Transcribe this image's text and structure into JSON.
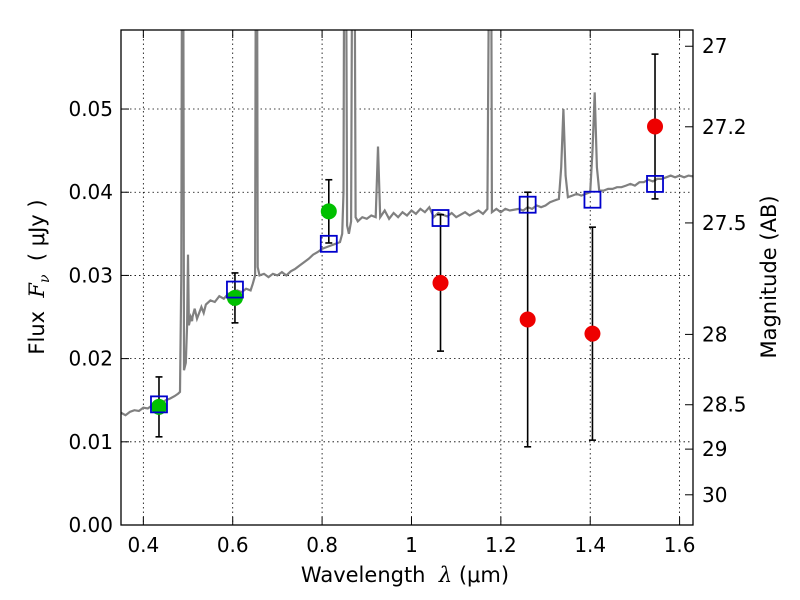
{
  "chart_data": {
    "type": "scatter",
    "xlabel_prefix": "Wavelength  ",
    "xlabel_symbol": "λ",
    "xlabel_unit": " (μm)",
    "ylabel_prefix": "Flux  ",
    "ylabel_symbol": "F",
    "ylabel_sub": "ν",
    "ylabel_unit": "  ( μJy )",
    "y2label": "Magnitude (AB)",
    "xlim": [
      0.35,
      1.63
    ],
    "ylim": [
      0.0,
      0.0595
    ],
    "grid": true,
    "x_ticks": [
      0.4,
      0.6,
      0.8,
      1.0,
      1.2,
      1.4,
      1.6
    ],
    "x_tick_labels": [
      "0.4",
      "0.6",
      "0.8",
      "1",
      "1.2",
      "1.4",
      "1.6"
    ],
    "y_ticks": [
      0.0,
      0.01,
      0.02,
      0.03,
      0.04,
      0.05
    ],
    "y_tick_labels": [
      "0.00",
      "0.01",
      "0.02",
      "0.03",
      "0.04",
      "0.05"
    ],
    "y2_ticks": [
      {
        "mag": 27.0,
        "label": "27"
      },
      {
        "mag": 27.2,
        "label": "27.2"
      },
      {
        "mag": 27.5,
        "label": "27.5"
      },
      {
        "mag": 28.0,
        "label": "28"
      },
      {
        "mag": 28.5,
        "label": "28.5"
      },
      {
        "mag": 29.0,
        "label": "29"
      },
      {
        "mag": 30.0,
        "label": "30"
      }
    ],
    "colors": {
      "spectrum": "#808080",
      "detection": "#00c000",
      "upper": "#ee0000",
      "model": "#0000cc",
      "errorbar": "#000000"
    },
    "series": [
      {
        "kind": "line",
        "points": [
          [
            0.35,
            0.0135
          ],
          [
            0.36,
            0.0132
          ],
          [
            0.37,
            0.0136
          ],
          [
            0.38,
            0.0138
          ],
          [
            0.39,
            0.0137
          ],
          [
            0.4,
            0.0141
          ],
          [
            0.41,
            0.014
          ],
          [
            0.42,
            0.0144
          ],
          [
            0.43,
            0.0143
          ],
          [
            0.44,
            0.0146
          ],
          [
            0.45,
            0.015
          ],
          [
            0.46,
            0.0152
          ],
          [
            0.47,
            0.0155
          ],
          [
            0.478,
            0.0158
          ],
          [
            0.482,
            0.016
          ],
          [
            0.485,
            0.03
          ],
          [
            0.487,
            0.08
          ],
          [
            0.489,
            0.08
          ],
          [
            0.491,
            0.0186
          ],
          [
            0.495,
            0.0195
          ],
          [
            0.498,
            0.024
          ],
          [
            0.5,
            0.0325
          ],
          [
            0.502,
            0.024
          ],
          [
            0.506,
            0.025
          ],
          [
            0.509,
            0.0245
          ],
          [
            0.51,
            0.025
          ],
          [
            0.515,
            0.026
          ],
          [
            0.52,
            0.0248
          ],
          [
            0.53,
            0.0262
          ],
          [
            0.535,
            0.0255
          ],
          [
            0.54,
            0.0265
          ],
          [
            0.55,
            0.027
          ],
          [
            0.56,
            0.0268
          ],
          [
            0.57,
            0.0275
          ],
          [
            0.58,
            0.0272
          ],
          [
            0.59,
            0.0278
          ],
          [
            0.6,
            0.0276
          ],
          [
            0.61,
            0.0282
          ],
          [
            0.62,
            0.028
          ],
          [
            0.63,
            0.0284
          ],
          [
            0.64,
            0.0282
          ],
          [
            0.645,
            0.029
          ],
          [
            0.65,
            0.03
          ],
          [
            0.652,
            0.08
          ],
          [
            0.654,
            0.08
          ],
          [
            0.656,
            0.031
          ],
          [
            0.66,
            0.03
          ],
          [
            0.67,
            0.0302
          ],
          [
            0.68,
            0.0298
          ],
          [
            0.69,
            0.0302
          ],
          [
            0.7,
            0.03
          ],
          [
            0.71,
            0.0304
          ],
          [
            0.72,
            0.03
          ],
          [
            0.73,
            0.0305
          ],
          [
            0.74,
            0.0308
          ],
          [
            0.75,
            0.0312
          ],
          [
            0.76,
            0.0316
          ],
          [
            0.77,
            0.032
          ],
          [
            0.78,
            0.0325
          ],
          [
            0.79,
            0.0328
          ],
          [
            0.8,
            0.0332
          ],
          [
            0.81,
            0.0334
          ],
          [
            0.82,
            0.0336
          ],
          [
            0.83,
            0.0338
          ],
          [
            0.84,
            0.034
          ],
          [
            0.845,
            0.035
          ],
          [
            0.848,
            0.04
          ],
          [
            0.85,
            0.08
          ],
          [
            0.853,
            0.08
          ],
          [
            0.856,
            0.036
          ],
          [
            0.86,
            0.035
          ],
          [
            0.865,
            0.0365
          ],
          [
            0.868,
            0.08
          ],
          [
            0.872,
            0.08
          ],
          [
            0.875,
            0.037
          ],
          [
            0.88,
            0.0365
          ],
          [
            0.89,
            0.037
          ],
          [
            0.9,
            0.0368
          ],
          [
            0.91,
            0.0372
          ],
          [
            0.92,
            0.037
          ],
          [
            0.925,
            0.0455
          ],
          [
            0.93,
            0.037
          ],
          [
            0.94,
            0.0378
          ],
          [
            0.95,
            0.0368
          ],
          [
            0.96,
            0.0375
          ],
          [
            0.97,
            0.037
          ],
          [
            0.98,
            0.0376
          ],
          [
            0.99,
            0.0372
          ],
          [
            1.0,
            0.0378
          ],
          [
            1.01,
            0.0374
          ],
          [
            1.02,
            0.038
          ],
          [
            1.03,
            0.0376
          ],
          [
            1.04,
            0.0382
          ],
          [
            1.05,
            0.037
          ],
          [
            1.06,
            0.0375
          ],
          [
            1.08,
            0.0371
          ],
          [
            1.09,
            0.0375
          ],
          [
            1.1,
            0.037
          ],
          [
            1.12,
            0.0376
          ],
          [
            1.13,
            0.0372
          ],
          [
            1.15,
            0.0378
          ],
          [
            1.16,
            0.0374
          ],
          [
            1.17,
            0.038
          ],
          [
            1.175,
            0.08
          ],
          [
            1.178,
            0.08
          ],
          [
            1.18,
            0.0376
          ],
          [
            1.19,
            0.038
          ],
          [
            1.2,
            0.0376
          ],
          [
            1.21,
            0.038
          ],
          [
            1.22,
            0.0378
          ],
          [
            1.24,
            0.038
          ],
          [
            1.25,
            0.0378
          ],
          [
            1.26,
            0.0382
          ],
          [
            1.27,
            0.038
          ],
          [
            1.28,
            0.0384
          ],
          [
            1.29,
            0.0382
          ],
          [
            1.3,
            0.0384
          ],
          [
            1.31,
            0.0388
          ],
          [
            1.32,
            0.039
          ],
          [
            1.33,
            0.0392
          ],
          [
            1.335,
            0.043
          ],
          [
            1.34,
            0.05
          ],
          [
            1.345,
            0.042
          ],
          [
            1.35,
            0.0394
          ],
          [
            1.36,
            0.0396
          ],
          [
            1.37,
            0.0398
          ],
          [
            1.38,
            0.0396
          ],
          [
            1.39,
            0.0398
          ],
          [
            1.4,
            0.04
          ],
          [
            1.405,
            0.045
          ],
          [
            1.41,
            0.052
          ],
          [
            1.415,
            0.043
          ],
          [
            1.42,
            0.0402
          ],
          [
            1.43,
            0.0402
          ],
          [
            1.44,
            0.0404
          ],
          [
            1.45,
            0.0404
          ],
          [
            1.46,
            0.0406
          ],
          [
            1.47,
            0.0406
          ],
          [
            1.48,
            0.0408
          ],
          [
            1.49,
            0.041
          ],
          [
            1.5,
            0.0408
          ],
          [
            1.51,
            0.0412
          ],
          [
            1.52,
            0.0412
          ],
          [
            1.53,
            0.0415
          ],
          [
            1.54,
            0.0413
          ],
          [
            1.55,
            0.0416
          ],
          [
            1.56,
            0.0416
          ],
          [
            1.57,
            0.0418
          ],
          [
            1.58,
            0.042
          ],
          [
            1.59,
            0.0418
          ],
          [
            1.6,
            0.042
          ],
          [
            1.61,
            0.0418
          ],
          [
            1.62,
            0.042
          ],
          [
            1.63,
            0.0419
          ]
        ]
      },
      {
        "kind": "detection",
        "points": [
          {
            "x": 0.435,
            "y": 0.0142,
            "err": 0.0036
          },
          {
            "x": 0.605,
            "y": 0.0273,
            "err": 0.003
          },
          {
            "x": 0.815,
            "y": 0.0377,
            "err": 0.0038
          }
        ]
      },
      {
        "kind": "upper",
        "points": [
          {
            "x": 1.065,
            "y": 0.0291,
            "err": 0.0082
          },
          {
            "x": 1.26,
            "y": 0.0247,
            "err": 0.0153
          },
          {
            "x": 1.405,
            "y": 0.023,
            "err": 0.0128
          },
          {
            "x": 1.545,
            "y": 0.0479,
            "err": 0.0087
          }
        ]
      },
      {
        "kind": "model",
        "points": [
          {
            "x": 0.435,
            "y": 0.0145
          },
          {
            "x": 0.605,
            "y": 0.0283
          },
          {
            "x": 0.815,
            "y": 0.0338
          },
          {
            "x": 1.065,
            "y": 0.0369
          },
          {
            "x": 1.26,
            "y": 0.0385
          },
          {
            "x": 1.405,
            "y": 0.0391
          },
          {
            "x": 1.545,
            "y": 0.041
          }
        ]
      }
    ]
  }
}
